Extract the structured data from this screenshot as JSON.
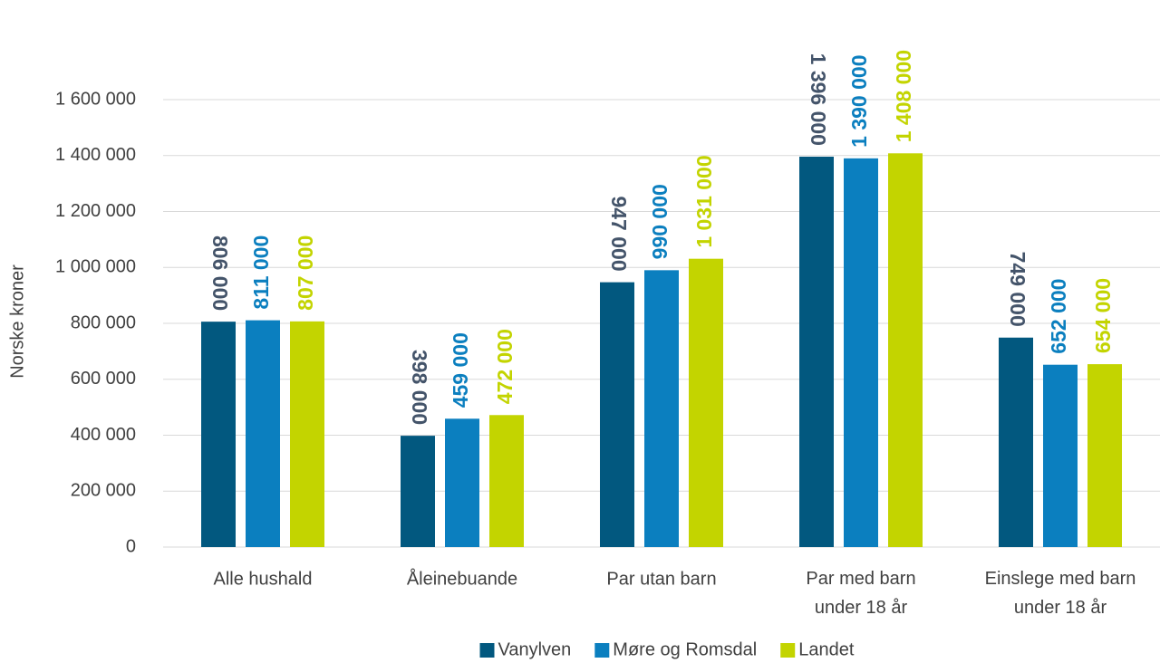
{
  "chart_data": {
    "type": "bar",
    "y_label": "Norske kroner",
    "categories": [
      "Alle hushald",
      "Åleinebuande",
      "Par utan barn",
      "Par med barn under 18 år",
      "Einslege med barn under 18 år"
    ],
    "series": [
      {
        "name": "Vanylven",
        "color": "#02587f",
        "label_color": "#44546a",
        "values": [
          806000,
          398000,
          947000,
          1396000,
          749000
        ],
        "value_labels": [
          "806 000",
          "398 000",
          "947 000",
          "1 396 000",
          "749 000"
        ]
      },
      {
        "name": "Møre og Romsdal",
        "color": "#0b7fbf",
        "label_color": "#0b7fbf",
        "values": [
          811000,
          459000,
          990000,
          1390000,
          652000
        ],
        "value_labels": [
          "811 000",
          "459 000",
          "990 000",
          "1 390 000",
          "652 000"
        ]
      },
      {
        "name": "Landet",
        "color": "#c3d400",
        "label_color": "#c3d400",
        "values": [
          807000,
          472000,
          1031000,
          1408000,
          654000
        ],
        "value_labels": [
          "807 000",
          "472 000",
          "1 031 000",
          "1 408 000",
          "654 000"
        ]
      }
    ],
    "ylim": [
      0,
      1600000
    ],
    "yticks": [
      0,
      {
        "value": 200000,
        "label": "200 000"
      },
      {
        "value": 400000,
        "label": "400 000"
      },
      {
        "value": 600000,
        "label": "600 000"
      },
      {
        "value": 800000,
        "label": "800 000"
      },
      {
        "value": 1000000,
        "label": "1 000 000"
      },
      {
        "value": 1200000,
        "label": "1 200 000"
      },
      {
        "value": 1400000,
        "label": "1 400 000"
      },
      {
        "value": 1600000,
        "label": "1 600 000"
      }
    ],
    "grid": true,
    "legend": "bottom"
  }
}
